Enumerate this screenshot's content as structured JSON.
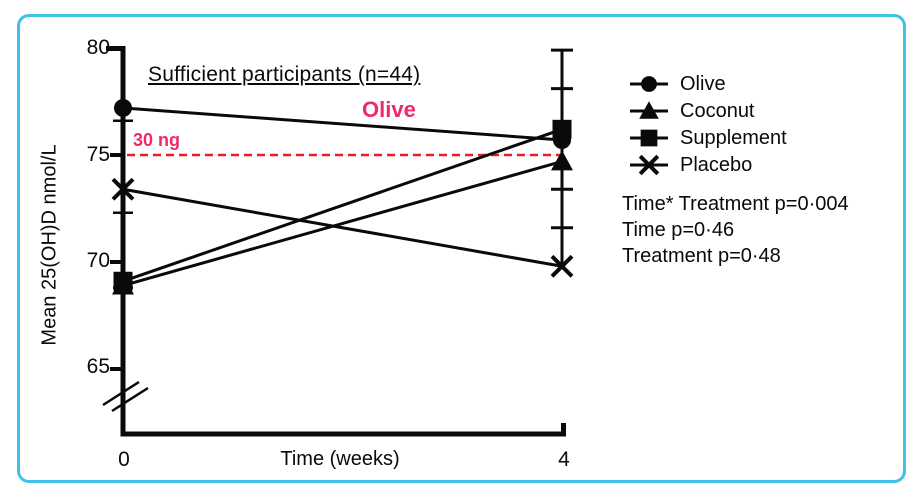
{
  "figure": {
    "border_color": "#3fc1e9",
    "background": "#ffffff",
    "ink_color": "#0a0a0a",
    "accent_pink": "#ee2a67",
    "threshold_red": "#ed1c24"
  },
  "chart_data": {
    "type": "line",
    "title": "Sufficient participants (n=44)",
    "xlabel": "Time (weeks)",
    "ylabel": "Mean 25(OH)D nmol/L",
    "x": [
      0,
      4
    ],
    "xtick_labels": [
      "0",
      "4"
    ],
    "yticks": [
      80,
      75,
      70,
      65
    ],
    "ylim_shown": [
      65,
      80
    ],
    "axis_break": true,
    "grid": false,
    "series": [
      {
        "name": "Olive",
        "marker": "circle",
        "color": "#0a0a0a",
        "values": [
          77.2,
          75.7
        ]
      },
      {
        "name": "Coconut",
        "marker": "triangle",
        "color": "#0a0a0a",
        "values": [
          68.9,
          74.7
        ]
      },
      {
        "name": "Supplement",
        "marker": "square",
        "color": "#0a0a0a",
        "values": [
          69.1,
          76.2
        ]
      },
      {
        "name": "Placebo",
        "marker": "x",
        "color": "#0a0a0a",
        "values": [
          73.4,
          69.8
        ]
      }
    ],
    "error_caps": {
      "week0": [
        76.6,
        72.3,
        68.8
      ],
      "week4": [
        79.9,
        78.1,
        73.4,
        71.6
      ]
    },
    "threshold": {
      "value": 75,
      "label": "30 ng",
      "color": "#ed1c24",
      "label_color": "#ee2a67",
      "style": "dashed"
    },
    "annotations": [
      {
        "text": "Olive",
        "color": "#ee2a67",
        "near": "olive-line"
      }
    ],
    "legend": {
      "position": "right",
      "entries": [
        "Olive",
        "Coconut",
        "Supplement",
        "Placebo"
      ]
    },
    "stats": [
      "Time* Treatment p=0·004",
      "Time p=0·46",
      "Treatment p=0·48"
    ]
  }
}
